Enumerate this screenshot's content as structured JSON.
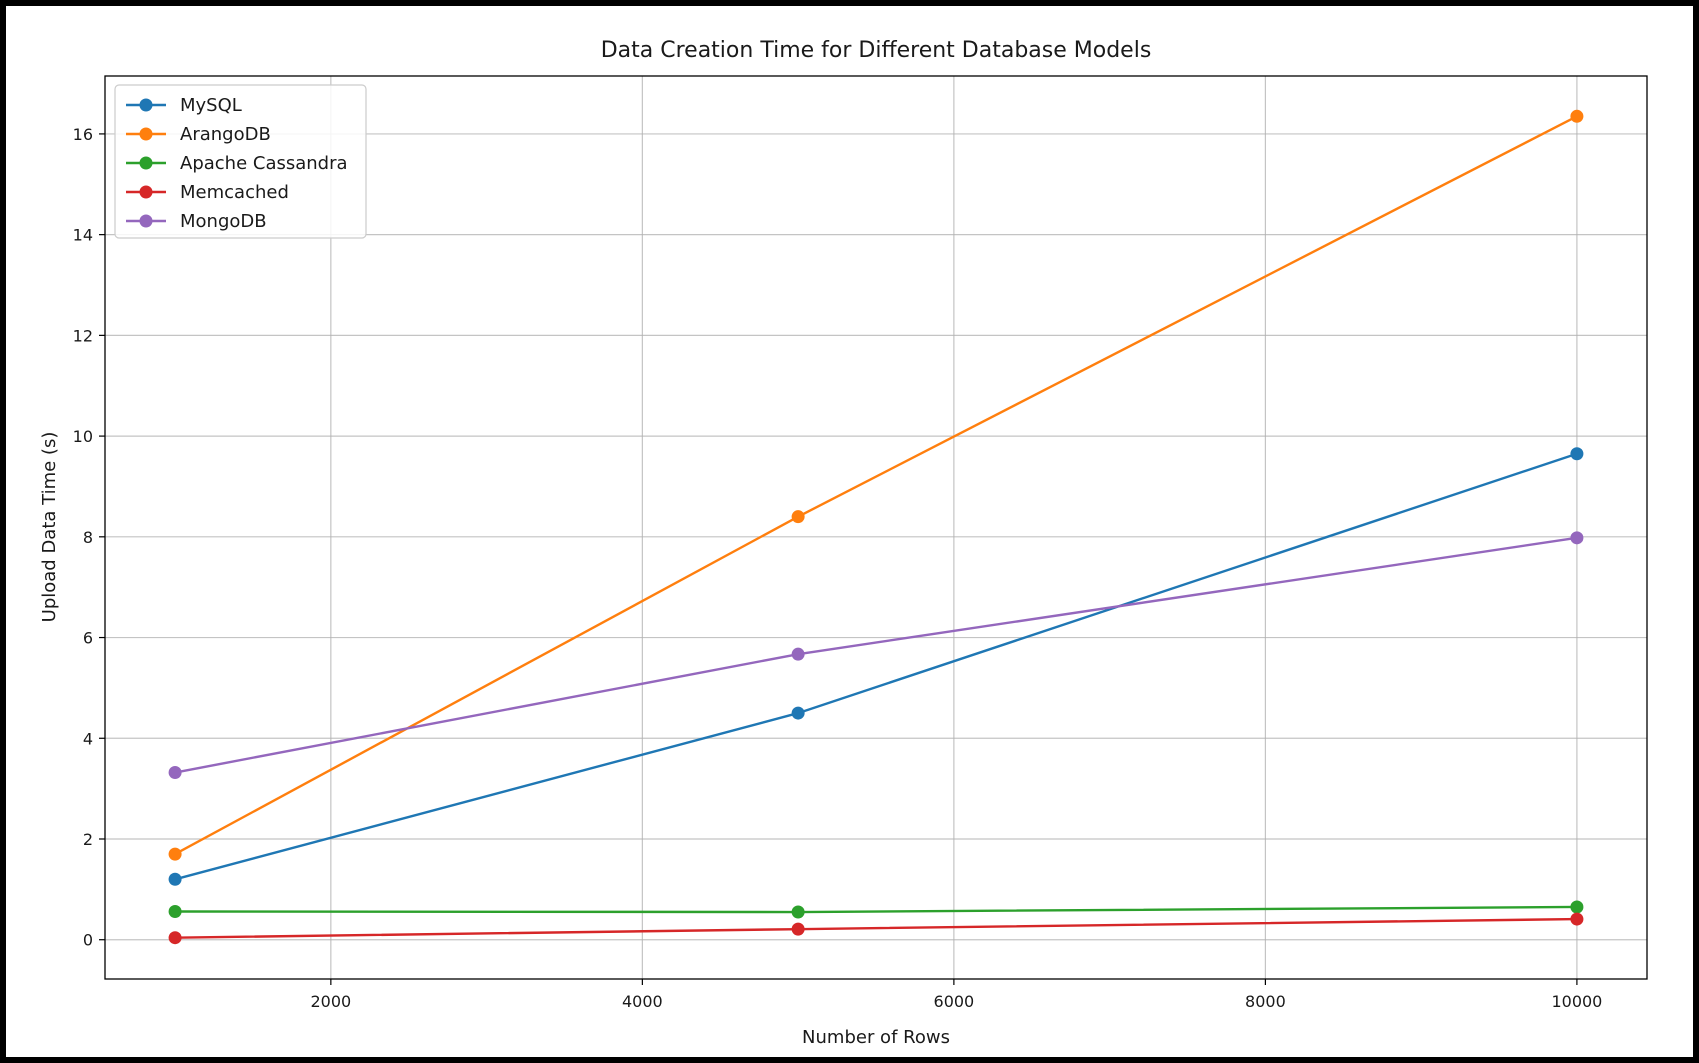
{
  "chart_data": {
    "type": "line",
    "title": "Data Creation Time for Different Database Models",
    "xlabel": "Number of Rows",
    "ylabel": "Upload Data Time (s)",
    "x": [
      1000,
      5000,
      10000
    ],
    "xlim": [
      550,
      10450
    ],
    "ylim": [
      -0.78,
      17.15
    ],
    "xticks": [
      2000,
      4000,
      6000,
      8000,
      10000
    ],
    "yticks": [
      0,
      2,
      4,
      6,
      8,
      10,
      12,
      14,
      16
    ],
    "grid": true,
    "legend_position": "top-left",
    "series": [
      {
        "name": "MySQL",
        "color": "#1f77b4",
        "marker": "circle",
        "values": [
          1.2,
          4.5,
          9.65
        ]
      },
      {
        "name": "ArangoDB",
        "color": "#ff7f0e",
        "marker": "circle",
        "values": [
          1.7,
          8.4,
          16.35
        ]
      },
      {
        "name": "Apache Cassandra",
        "color": "#2ca02c",
        "marker": "circle",
        "values": [
          0.56,
          0.55,
          0.65
        ]
      },
      {
        "name": "Memcached",
        "color": "#d62728",
        "marker": "circle",
        "values": [
          0.04,
          0.21,
          0.41
        ]
      },
      {
        "name": "MongoDB",
        "color": "#9467bd",
        "marker": "circle",
        "values": [
          3.32,
          5.67,
          7.98
        ]
      }
    ]
  }
}
